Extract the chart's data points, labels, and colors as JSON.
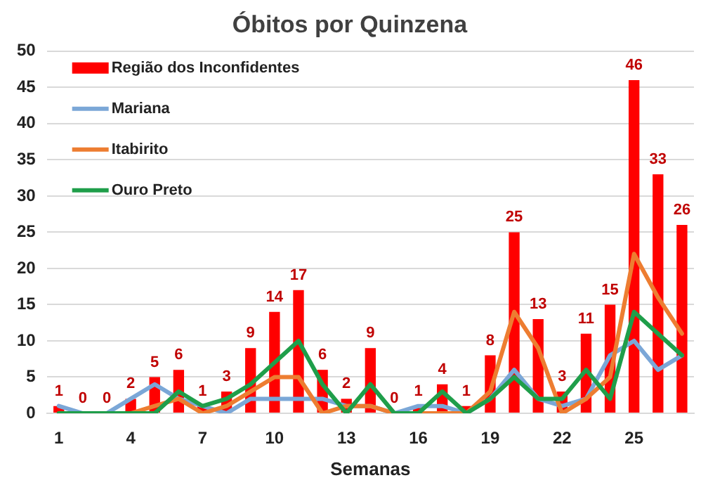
{
  "chart_data": {
    "type": "bar",
    "title": "Óbitos por Quinzena",
    "xlabel": "Semanas",
    "categories": [
      "1",
      null,
      null,
      "4",
      null,
      null,
      "7",
      null,
      null,
      "10",
      null,
      null,
      "13",
      null,
      null,
      "16",
      null,
      null,
      "19",
      null,
      null,
      "22",
      null,
      null,
      "25",
      null,
      null
    ],
    "series": [
      {
        "name": "Região dos Inconfidentes",
        "color": "#ff0000",
        "values": [
          1,
          0,
          0,
          2,
          5,
          6,
          1,
          3,
          9,
          14,
          17,
          6,
          2,
          9,
          0,
          1,
          4,
          1,
          8,
          25,
          13,
          3,
          11,
          15,
          46,
          33,
          26
        ],
        "value_labels": [
          "1",
          "0",
          "0",
          "2",
          "5",
          "6",
          "1",
          "3",
          "9",
          "14",
          "17",
          "6",
          "2",
          "9",
          "0",
          "1",
          "4",
          "1",
          "8",
          "25",
          "13",
          "3",
          "11",
          "15",
          "46",
          "33",
          "26"
        ]
      },
      {
        "name": "Mariana",
        "type": "line",
        "color": "#7ba7d7",
        "values": [
          1,
          0,
          0,
          2,
          4,
          2,
          1,
          0,
          2,
          2,
          2,
          2,
          1,
          1,
          0,
          1,
          1,
          0,
          2,
          6,
          2,
          1,
          2,
          8,
          10,
          6,
          8
        ]
      },
      {
        "name": "Itabirito",
        "type": "line",
        "color": "#ed7d31",
        "values": [
          null,
          null,
          0,
          0,
          1,
          2,
          0,
          1,
          3,
          5,
          5,
          0,
          1,
          1,
          0,
          0,
          0,
          0,
          3,
          14,
          9,
          0,
          2,
          5,
          22,
          16,
          11
        ]
      },
      {
        "name": "Ouro Preto",
        "type": "line",
        "color": "#1f9e4a",
        "values": [
          0,
          0,
          0,
          0,
          0,
          3,
          1,
          2,
          4,
          7,
          10,
          4,
          0,
          4,
          0,
          0,
          3,
          0,
          2,
          5,
          2,
          2,
          6,
          2,
          14,
          11,
          8
        ]
      }
    ],
    "ylim": [
      0,
      50
    ],
    "yticks": [
      0,
      5,
      10,
      15,
      20,
      25,
      30,
      35,
      40,
      45,
      50
    ],
    "grid": "y",
    "legend": "top left",
    "marker": "none",
    "line_style": "solid"
  }
}
